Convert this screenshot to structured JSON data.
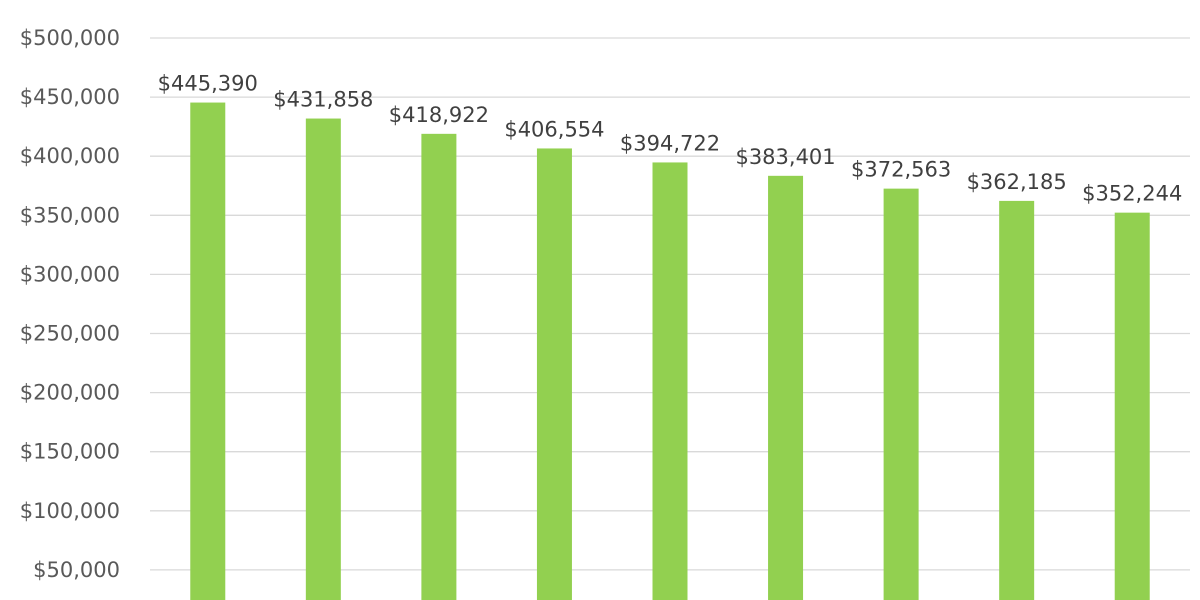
{
  "chart_data": {
    "type": "bar",
    "title": "",
    "xlabel": "",
    "ylabel": "",
    "values": [
      445390,
      431858,
      418922,
      406554,
      394722,
      383401,
      372563,
      362185,
      352244
    ],
    "data_labels": [
      "$445,390",
      "$431,858",
      "$418,922",
      "$406,554",
      "$394,722",
      "$383,401",
      "$372,563",
      "$362,185",
      "$352,244"
    ],
    "yticks": [
      50000,
      100000,
      150000,
      200000,
      250000,
      300000,
      350000,
      400000,
      450000,
      500000
    ],
    "ytick_labels": [
      "$50,000",
      "$100,000",
      "$150,000",
      "$200,000",
      "$250,000",
      "$300,000",
      "$350,000",
      "$400,000",
      "$450,000",
      "$500,000"
    ],
    "ylim": [
      0,
      500000
    ],
    "grid": true,
    "legend": "none",
    "bar_color": "#92d050",
    "grid_color": "#d9d9d9"
  }
}
